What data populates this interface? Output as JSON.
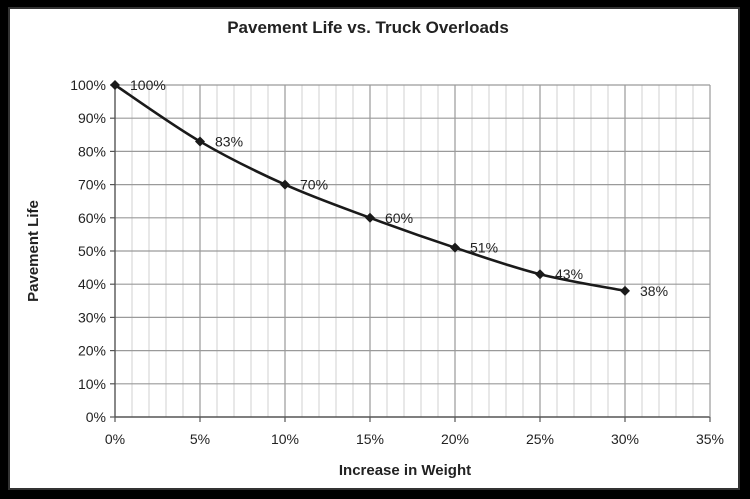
{
  "chart_data": {
    "type": "line",
    "title": "Pavement Life vs. Truck Overloads",
    "xlabel": "Increase in Weight",
    "ylabel": "Pavement Life",
    "x_ticks": [
      "0%",
      "5%",
      "10%",
      "15%",
      "20%",
      "25%",
      "30%",
      "35%"
    ],
    "y_ticks": [
      "0%",
      "10%",
      "20%",
      "30%",
      "40%",
      "50%",
      "60%",
      "70%",
      "80%",
      "90%",
      "100%"
    ],
    "xlim": [
      0,
      35
    ],
    "ylim": [
      0,
      100
    ],
    "grid": true,
    "legend": "none",
    "series": [
      {
        "x": [
          0,
          5,
          10,
          15,
          20,
          25,
          30
        ],
        "values": [
          100,
          83,
          70,
          60,
          51,
          43,
          38
        ],
        "labels": [
          "100%",
          "83%",
          "70%",
          "60%",
          "51%",
          "43%",
          "38%"
        ]
      }
    ],
    "colors": {
      "line": "#1a1a1a",
      "major_grid": "#9a9a9a",
      "minor_grid": "#d0d0d0"
    }
  }
}
